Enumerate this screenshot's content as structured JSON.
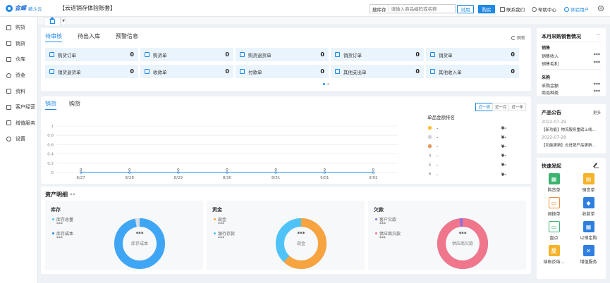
{
  "brand": {
    "logo_text": "金蝶",
    "logo_sub": "精斗云",
    "account_title": "【云进销存体验账套】"
  },
  "topbar": {
    "search_label": "搜库存",
    "search_placeholder": "请输入商品编码或名称",
    "trial_label": "试用",
    "buy_label": "购买",
    "contact_label": "联系我们",
    "help_label": "帮助中心",
    "user_label": "体验用户"
  },
  "sidebar": {
    "items": [
      {
        "label": "购货",
        "icon": "cart-icon"
      },
      {
        "label": "销货",
        "icon": "sales-icon"
      },
      {
        "label": "仓库",
        "icon": "warehouse-icon"
      },
      {
        "label": "资金",
        "icon": "money-icon"
      },
      {
        "label": "资料",
        "icon": "document-icon"
      },
      {
        "label": "客户经营",
        "icon": "customer-icon"
      },
      {
        "label": "增值服务",
        "icon": "service-icon"
      },
      {
        "label": "设置",
        "icon": "gear-icon"
      }
    ]
  },
  "todo": {
    "tabs": [
      "待审核",
      "待出入库",
      "预警信息"
    ],
    "refresh_label": "刷新",
    "tiles": [
      {
        "label": "购货订单",
        "value": "0"
      },
      {
        "label": "购货单",
        "value": "0"
      },
      {
        "label": "购货退货单",
        "value": "0"
      },
      {
        "label": "销货订单",
        "value": "0"
      },
      {
        "label": "销货单",
        "value": "0"
      },
      {
        "label": "销货退货单",
        "value": "0"
      },
      {
        "label": "收款单",
        "value": "0"
      },
      {
        "label": "付款单",
        "value": "0"
      },
      {
        "label": "其他支出单",
        "value": "0"
      },
      {
        "label": "其他收入单",
        "value": "0"
      }
    ]
  },
  "sales": {
    "tabs": [
      "销货",
      "购货"
    ],
    "ranges": [
      "近一周",
      "近一月",
      "近一年"
    ],
    "rank_title": "单品金额排名",
    "rank": [
      {
        "no": "1",
        "name": "-",
        "value": "¥-"
      },
      {
        "no": "2",
        "name": "-",
        "value": "¥-"
      },
      {
        "no": "3",
        "name": "-",
        "value": "¥-"
      },
      {
        "no": "4",
        "name": "-",
        "value": "¥-"
      },
      {
        "no": "5",
        "name": "-",
        "value": "¥-"
      },
      {
        "no": "6",
        "name": "-",
        "value": "¥-"
      }
    ]
  },
  "chart_data": {
    "type": "line",
    "categories": [
      "8/27",
      "8/28",
      "8/29",
      "8/30",
      "8/31",
      "9/01",
      "9/02"
    ],
    "values": [
      0,
      0,
      0,
      0,
      0,
      0,
      0
    ],
    "yticks": [
      "1",
      "0.8",
      "0.6",
      "0.4",
      "0.2",
      "0"
    ],
    "ylim": [
      0,
      1
    ],
    "title": "",
    "xlabel": "",
    "ylabel": "",
    "grid": true,
    "color": "#1e88e5"
  },
  "assets": {
    "title": "资产明细",
    "eye": "ᵕᵕ",
    "boxes": [
      {
        "title": "库存",
        "items": [
          {
            "label": "库存总量",
            "value": "***",
            "color": "#4fc3f7"
          },
          {
            "label": "库存成本",
            "value": "***",
            "color": "#1e88e5"
          }
        ],
        "center_value": "***",
        "center_label": "库存成本",
        "ring_color": "#3ea6f5",
        "ring_fill": 0.97
      },
      {
        "title": "资金",
        "items": [
          {
            "label": "现金",
            "value": "***",
            "color": "#f7a440"
          },
          {
            "label": "银行存款",
            "value": "***",
            "color": "#4fc3f7"
          }
        ],
        "center_value": "***",
        "center_label": "现金",
        "ring_color": "#f7a440",
        "ring_fill": 0.62,
        "ring_color2": "#4fc3f7"
      },
      {
        "title": "欠款",
        "items": [
          {
            "label": "客户欠款",
            "value": "***",
            "color": "#8c6ce0"
          },
          {
            "label": "供应商欠款",
            "value": "***",
            "color": "#f0768b"
          }
        ],
        "center_value": "***",
        "center_label": "供应商欠款",
        "ring_color": "#f0768b",
        "ring_fill": 0.98,
        "ring_color2": "#8c6ce0"
      }
    ]
  },
  "monthly": {
    "title": "本月采购销售情况",
    "eye": "ᵕᵕ",
    "sales_header": "销售",
    "sales_rows": [
      {
        "label": "销售收入",
        "value": "***"
      },
      {
        "label": "销售毛利",
        "value": "***"
      }
    ],
    "purchase_header": "采购",
    "purchase_rows": [
      {
        "label": "采购金额",
        "value": "***"
      },
      {
        "label": "商品种类",
        "value": "***"
      }
    ]
  },
  "notice": {
    "title": "产品公告",
    "more_label": "更多",
    "items": [
      {
        "date": "2022-07-29",
        "text": "【新功能】物流服务重磅上线..."
      },
      {
        "date": "2022-07-28",
        "text": "【功能更新】云进销产品更新..."
      }
    ]
  },
  "quick": {
    "title": "快速发起",
    "items": [
      {
        "label": "购货单",
        "icon": "cart-icon",
        "color": "#3cb371",
        "glyph": "▦"
      },
      {
        "label": "销货单",
        "icon": "shopping-bag-icon",
        "color": "#f5b32a",
        "glyph": "▤"
      },
      {
        "label": "调拨单",
        "icon": "monitor-icon",
        "color": "#f08a3a",
        "glyph": "▭"
      },
      {
        "label": "收款单",
        "icon": "tag-icon",
        "color": "#2f7fe0",
        "glyph": "◆"
      },
      {
        "label": "盘点",
        "icon": "screen-icon",
        "color": "#3cb371",
        "glyph": "▭"
      },
      {
        "label": "以销定购",
        "icon": "grid-icon",
        "color": "#2f7fe0",
        "glyph": "▦"
      },
      {
        "label": "结账反结...",
        "icon": "reverse-icon",
        "color": "#f5b32a",
        "glyph": "反"
      },
      {
        "label": "增值服务",
        "icon": "tools-icon",
        "color": "#2f7fe0",
        "glyph": "✕"
      }
    ]
  }
}
